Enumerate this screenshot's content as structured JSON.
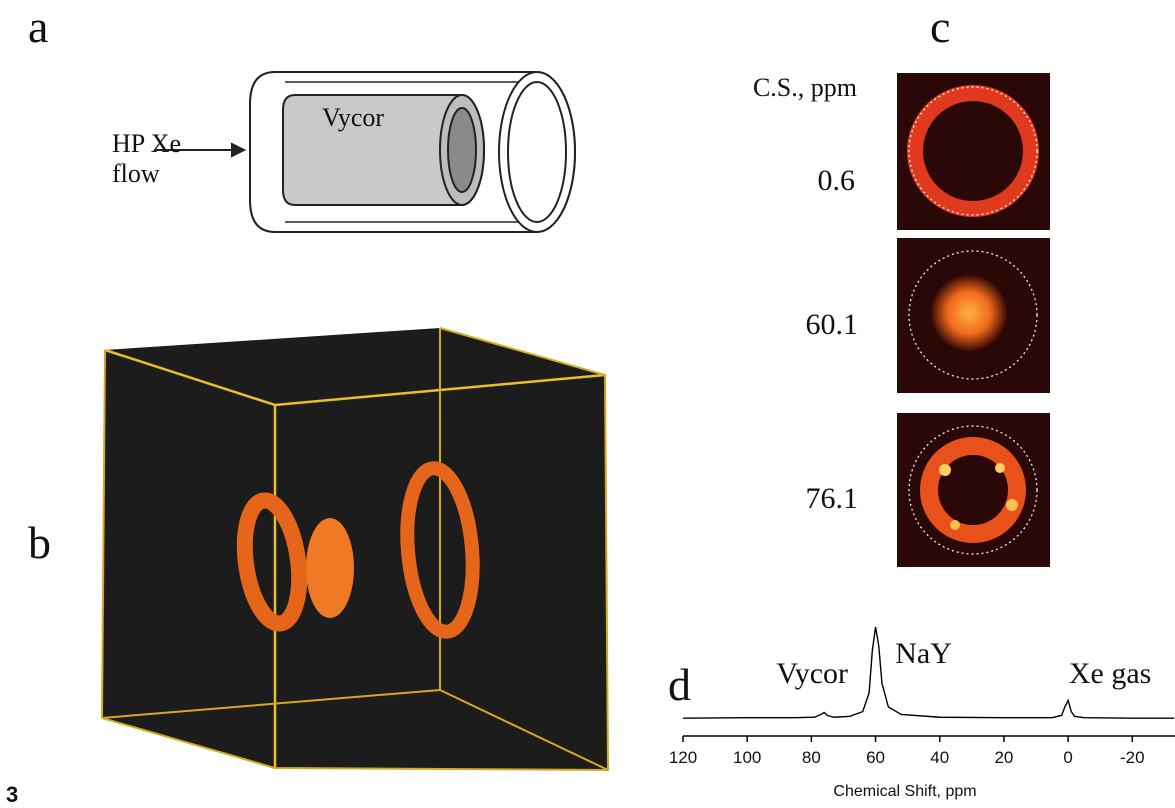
{
  "figure_number": "3",
  "panels": {
    "a": {
      "label": "a",
      "inlet": [
        "HP Xe",
        "flow"
      ],
      "sample": "Vycor"
    },
    "b": {
      "label": "b"
    },
    "c": {
      "label": "c",
      "header": "C.S., ppm",
      "shifts": [
        "0.6",
        "60.1",
        "76.1"
      ]
    },
    "d": {
      "label": "d"
    }
  },
  "chart_data": {
    "type": "line",
    "xlabel": "Chemical Shift, ppm",
    "xlim": [
      120,
      -33
    ],
    "xticks": [
      120,
      100,
      80,
      60,
      40,
      20,
      0,
      -20
    ],
    "ylim": [
      0,
      100
    ],
    "x": [
      120,
      100,
      85,
      79,
      77,
      76,
      75,
      73,
      68,
      64,
      62,
      61,
      60,
      59,
      58,
      56,
      52,
      40,
      20,
      5,
      2,
      1,
      0,
      -1,
      -2,
      -5,
      -20,
      -33
    ],
    "series": [
      {
        "color": "#000000",
        "values": [
          3,
          3.5,
          3.5,
          4,
          7,
          9,
          6,
          4,
          5,
          10,
          30,
          75,
          100,
          80,
          40,
          15,
          7,
          4,
          3.5,
          3.5,
          6,
          15,
          22,
          10,
          5,
          3.5,
          3,
          3
        ]
      }
    ],
    "annotations": [
      {
        "text": "Vycor",
        "x": 76
      },
      {
        "text": "NaY",
        "x": 60
      },
      {
        "text": "Xe gas",
        "x": 0
      }
    ]
  }
}
